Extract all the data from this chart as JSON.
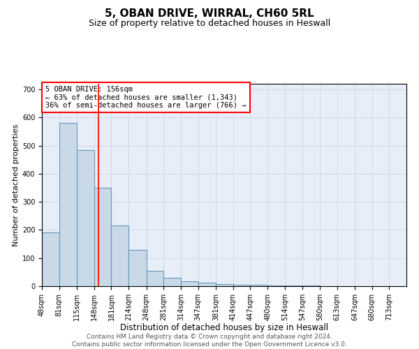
{
  "title1": "5, OBAN DRIVE, WIRRAL, CH60 5RL",
  "title2": "Size of property relative to detached houses in Heswall",
  "xlabel": "Distribution of detached houses by size in Heswall",
  "ylabel": "Number of detached properties",
  "bar_edges": [
    48,
    81,
    115,
    148,
    181,
    214,
    248,
    281,
    314,
    347,
    381,
    414,
    447,
    480,
    514,
    547,
    580,
    613,
    647,
    680,
    713
  ],
  "bar_heights": [
    190,
    580,
    485,
    350,
    215,
    130,
    55,
    30,
    18,
    12,
    8,
    5,
    4,
    3,
    2,
    2,
    1,
    1,
    1,
    1,
    0
  ],
  "bar_color": "#c9d9e8",
  "bar_edge_color": "#6699bb",
  "bar_linewidth": 0.8,
  "red_line_x": 156,
  "red_line_color": "red",
  "annotation_text": "5 OBAN DRIVE: 156sqm\n← 63% of detached houses are smaller (1,343)\n36% of semi-detached houses are larger (766) →",
  "annotation_box_color": "white",
  "annotation_box_edge_color": "red",
  "ylim": [
    0,
    720
  ],
  "yticks": [
    0,
    100,
    200,
    300,
    400,
    500,
    600,
    700
  ],
  "grid_color": "#d0d8e8",
  "background_color": "#e8eef8",
  "footer_line1": "Contains HM Land Registry data © Crown copyright and database right 2024.",
  "footer_line2": "Contains public sector information licensed under the Open Government Licence v3.0.",
  "title1_fontsize": 11,
  "title2_fontsize": 9,
  "xlabel_fontsize": 8.5,
  "ylabel_fontsize": 8,
  "tick_fontsize": 7,
  "annotation_fontsize": 7.5,
  "footer_fontsize": 6.5
}
